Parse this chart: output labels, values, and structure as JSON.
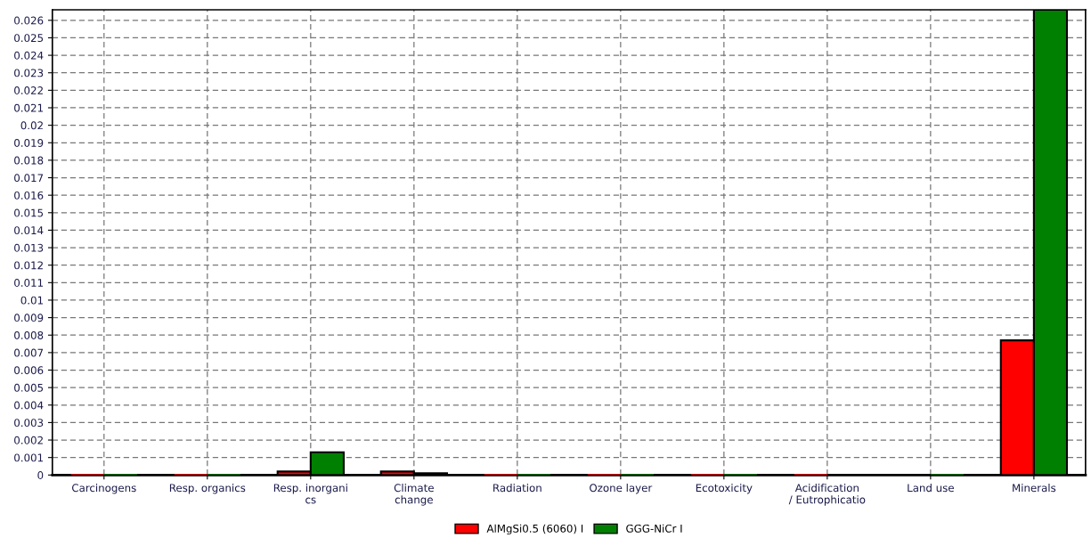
{
  "chart_data": {
    "type": "bar",
    "categories": [
      "Carcinogens",
      "Resp. organics",
      "Resp. inorgani\ncs",
      "Climate\nchange",
      "Radiation",
      "Ozone layer",
      "Ecotoxicity",
      "Acidification\n/ Eutrophicatio",
      "Land use",
      "Minerals"
    ],
    "series": [
      {
        "name": "AlMgSi0.5 (6060) I",
        "color": "#ff0000",
        "values": [
          0,
          0,
          0.0002,
          0.0002,
          0,
          0,
          0,
          0,
          null,
          0.0077
        ]
      },
      {
        "name": "GGG-NiCr I",
        "color": "#008000",
        "values": [
          0,
          0,
          0.0013,
          0.0001,
          0,
          0,
          0,
          null,
          0,
          0.0266
        ]
      }
    ],
    "ylim": [
      0,
      0.0266
    ],
    "yticks": [
      0,
      0.001,
      0.002,
      0.003,
      0.004,
      0.005,
      0.006,
      0.007,
      0.008,
      0.009,
      0.01,
      0.011,
      0.012,
      0.013,
      0.014,
      0.015,
      0.016,
      0.017,
      0.018,
      0.019,
      0.02,
      0.021,
      0.022,
      0.023,
      0.024,
      0.025,
      0.026
    ],
    "grid": true,
    "legend": "bottom"
  }
}
